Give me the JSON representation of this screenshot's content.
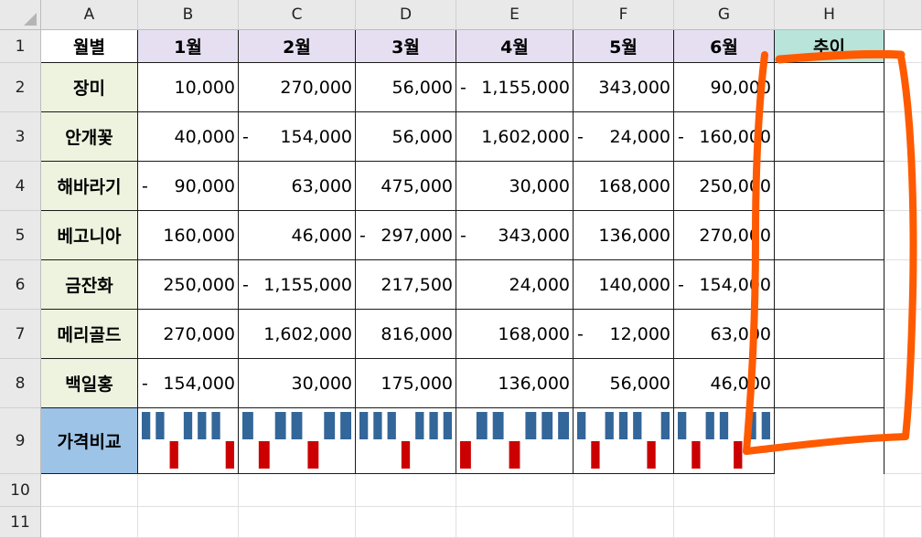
{
  "sheet": {
    "columns": [
      "A",
      "B",
      "C",
      "D",
      "E",
      "F",
      "G",
      "H"
    ],
    "rows": [
      "1",
      "2",
      "3",
      "4",
      "5",
      "6",
      "7",
      "8",
      "9",
      "10",
      "11"
    ],
    "header": {
      "label": "월별",
      "months": [
        "1월",
        "2월",
        "3월",
        "4월",
        "5월",
        "6월"
      ],
      "trend": "추이"
    },
    "data_rows": [
      {
        "name": "장미",
        "values": [
          10000,
          270000,
          56000,
          -1155000,
          343000,
          90000
        ],
        "display": [
          "10,000",
          "270,000",
          "56,000",
          "1,155,000",
          "343,000",
          "90,000"
        ]
      },
      {
        "name": "안개꽃",
        "values": [
          40000,
          -154000,
          56000,
          1602000,
          -24000,
          -160000
        ],
        "display": [
          "40,000",
          "154,000",
          "56,000",
          "1,602,000",
          "24,000",
          "160,000"
        ]
      },
      {
        "name": "해바라기",
        "values": [
          -90000,
          63000,
          475000,
          30000,
          168000,
          250000
        ],
        "display": [
          "90,000",
          "63,000",
          "475,000",
          "30,000",
          "168,000",
          "250,000"
        ]
      },
      {
        "name": "베고니아",
        "values": [
          160000,
          46000,
          -297000,
          -343000,
          136000,
          270000
        ],
        "display": [
          "160,000",
          "46,000",
          "297,000",
          "343,000",
          "136,000",
          "270,000"
        ]
      },
      {
        "name": "금잔화",
        "values": [
          250000,
          -1155000,
          217500,
          24000,
          140000,
          -154000
        ],
        "display": [
          "250,000",
          "1,155,000",
          "217,500",
          "24,000",
          "140,000",
          "154,000"
        ]
      },
      {
        "name": "메리골드",
        "values": [
          270000,
          1602000,
          816000,
          168000,
          -12000,
          63000
        ],
        "display": [
          "270,000",
          "1,602,000",
          "816,000",
          "168,000",
          "12,000",
          "63,000"
        ]
      },
      {
        "name": "백일홍",
        "values": [
          -154000,
          30000,
          175000,
          136000,
          56000,
          46000
        ],
        "display": [
          "154,000",
          "30,000",
          "175,000",
          "136,000",
          "56,000",
          "46,000"
        ]
      }
    ],
    "compare_label": "가격비교",
    "negative_sign": "-"
  },
  "colors": {
    "positive_bar": "#336699",
    "negative_bar": "#cc0000",
    "annotation_stroke": "#ff5a00",
    "month_header": "#e6dff2",
    "trend_header": "#b8e4d9",
    "name_fill": "#edf3de",
    "compare_fill": "#9dc3e6"
  },
  "icons": {
    "select_all": "select-all-triangle-icon"
  }
}
